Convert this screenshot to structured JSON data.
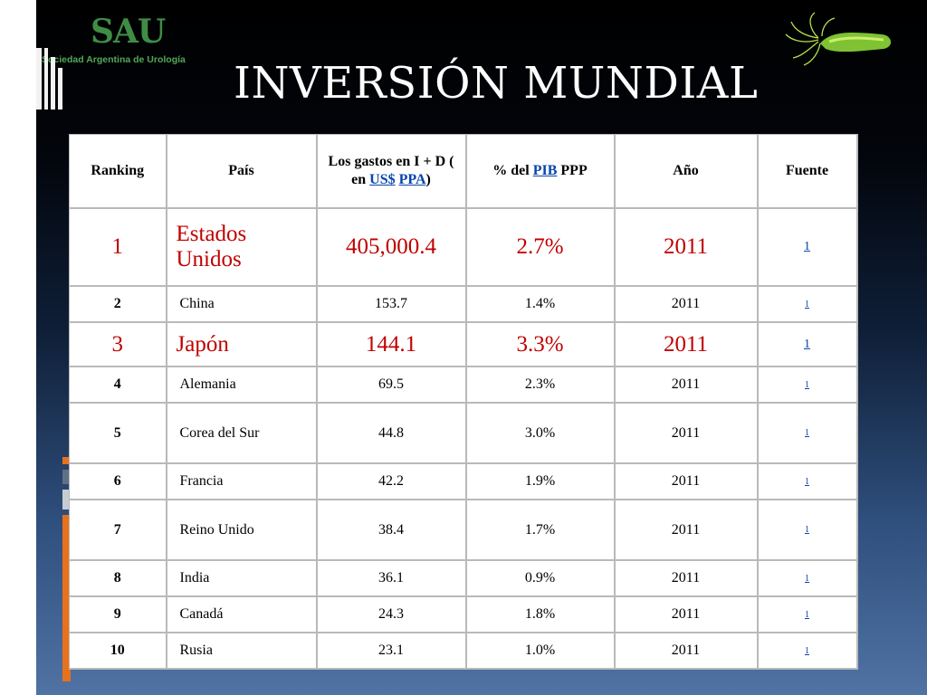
{
  "logo": {
    "mark": "SAU",
    "name": "Sociedad Argentina de Urología"
  },
  "title": "INVERSIÓN MUNDIAL",
  "table": {
    "headers": {
      "ranking": "Ranking",
      "pais": "País",
      "gastos_prefix": "Los gastos en I + D ( en",
      "gastos_usd": "US$",
      "gastos_ppa": "PPA",
      "gastos_suffix": ")",
      "pib_prefix": "% del",
      "pib_link": "PIB",
      "pib_suffix": "PPP",
      "anio": "Año",
      "fuente": "Fuente"
    },
    "rows": [
      {
        "rank": "1",
        "country": "Estados Unidos",
        "spend": "405,000.4",
        "pib": "2.7%",
        "year": "2011",
        "source": "1"
      },
      {
        "rank": "2",
        "country": "China",
        "spend": "153.7",
        "pib": "1.4%",
        "year": "2011",
        "source": "1"
      },
      {
        "rank": "3",
        "country": "Japón",
        "spend": "144.1",
        "pib": "3.3%",
        "year": "2011",
        "source": "1"
      },
      {
        "rank": "4",
        "country": "Alemania",
        "spend": "69.5",
        "pib": "2.3%",
        "year": "2011",
        "source": "1"
      },
      {
        "rank": "5",
        "country": "Corea del Sur",
        "spend": "44.8",
        "pib": "3.0%",
        "year": "2011",
        "source": "1"
      },
      {
        "rank": "6",
        "country": "Francia",
        "spend": "42.2",
        "pib": "1.9%",
        "year": "2011",
        "source": "1"
      },
      {
        "rank": "7",
        "country": "Reino Unido",
        "spend": "38.4",
        "pib": "1.7%",
        "year": "2011",
        "source": "1"
      },
      {
        "rank": "8",
        "country": "India",
        "spend": "36.1",
        "pib": "0.9%",
        "year": "2011",
        "source": "1"
      },
      {
        "rank": "9",
        "country": "Canadá",
        "spend": "24.3",
        "pib": "1.8%",
        "year": "2011",
        "source": "1"
      },
      {
        "rank": "10",
        "country": "Rusia",
        "spend": "23.1",
        "pib": "1.0%",
        "year": "2011",
        "source": "1"
      }
    ]
  },
  "colors": {
    "highlight": "#c00000",
    "link": "#0645ad",
    "logo_green": "#3f8d45",
    "accent_orange": "#e8711c"
  },
  "icons": {
    "corner_image": "bacteria-icon"
  }
}
